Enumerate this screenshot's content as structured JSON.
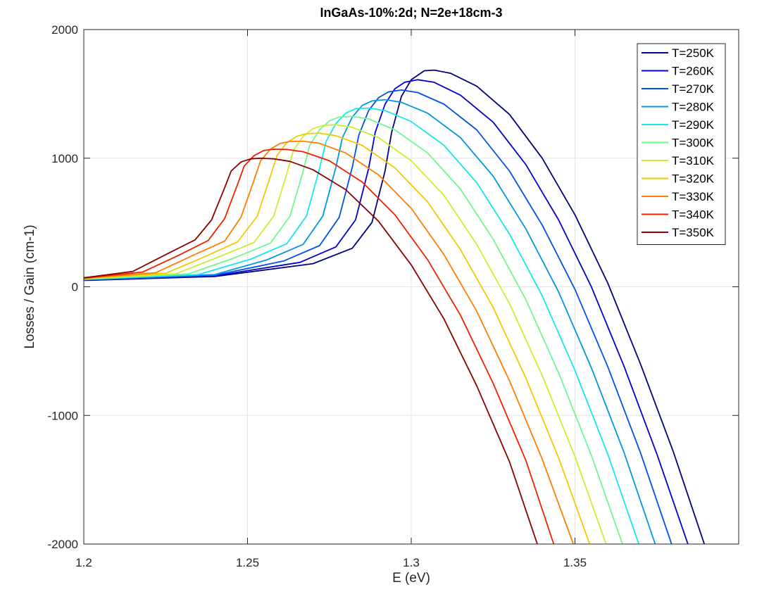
{
  "chart_data": {
    "type": "line",
    "title": "InGaAs-10%:2d; N=2e+18cm-3",
    "xlabel": "E (eV)",
    "ylabel": "Losses / Gain (cm-1)",
    "xlim": [
      1.2,
      1.4
    ],
    "ylim": [
      -2000,
      2000
    ],
    "xticks": [
      1.2,
      1.25,
      1.3,
      1.35
    ],
    "xtick_labels": [
      "1.2",
      "1.25",
      "1.3",
      "1.35"
    ],
    "yticks": [
      -2000,
      -1000,
      0,
      1000,
      2000
    ],
    "ytick_labels": [
      "-2000",
      "-1000",
      "0",
      "1000",
      "2000"
    ],
    "grid": true,
    "legend_position": "top-right",
    "series": [
      {
        "name": "T=250K",
        "color": "#00007f",
        "x": [
          1.2,
          1.24,
          1.27,
          1.282,
          1.288,
          1.292,
          1.294,
          1.297,
          1.3,
          1.304,
          1.307,
          1.312,
          1.32,
          1.33,
          1.34,
          1.35,
          1.36,
          1.37,
          1.38,
          1.3895
        ],
        "y": [
          50,
          80,
          180,
          300,
          500,
          900,
          1200,
          1480,
          1610,
          1680,
          1685,
          1660,
          1560,
          1340,
          1000,
          560,
          30,
          -600,
          -1280,
          -2000
        ]
      },
      {
        "name": "T=260K",
        "color": "#0000d0",
        "x": [
          1.2,
          1.24,
          1.266,
          1.277,
          1.283,
          1.287,
          1.289,
          1.292,
          1.295,
          1.298,
          1.302,
          1.307,
          1.315,
          1.325,
          1.335,
          1.345,
          1.355,
          1.365,
          1.375,
          1.3845
        ],
        "y": [
          52,
          85,
          190,
          310,
          520,
          920,
          1200,
          1420,
          1540,
          1590,
          1610,
          1590,
          1490,
          1280,
          950,
          520,
          0,
          -620,
          -1300,
          -2000
        ]
      },
      {
        "name": "T=270K",
        "color": "#0050e8",
        "x": [
          1.2,
          1.24,
          1.261,
          1.272,
          1.278,
          1.282,
          1.284,
          1.287,
          1.29,
          1.293,
          1.297,
          1.302,
          1.31,
          1.32,
          1.33,
          1.34,
          1.35,
          1.36,
          1.37,
          1.3795
        ],
        "y": [
          54,
          90,
          200,
          320,
          540,
          930,
          1180,
          1370,
          1470,
          1515,
          1530,
          1510,
          1420,
          1220,
          900,
          480,
          -20,
          -620,
          -1290,
          -2000
        ]
      },
      {
        "name": "T=280K",
        "color": "#0096e0",
        "x": [
          1.2,
          1.24,
          1.256,
          1.267,
          1.273,
          1.277,
          1.279,
          1.282,
          1.285,
          1.288,
          1.292,
          1.297,
          1.305,
          1.315,
          1.325,
          1.335,
          1.345,
          1.355,
          1.365,
          1.3745
        ],
        "y": [
          56,
          95,
          210,
          330,
          550,
          930,
          1160,
          1320,
          1410,
          1445,
          1455,
          1435,
          1350,
          1160,
          860,
          450,
          -40,
          -630,
          -1290,
          -2000
        ]
      },
      {
        "name": "T=290K",
        "color": "#14e6f0",
        "x": [
          1.2,
          1.235,
          1.251,
          1.262,
          1.268,
          1.272,
          1.274,
          1.277,
          1.28,
          1.283,
          1.287,
          1.292,
          1.3,
          1.31,
          1.32,
          1.33,
          1.34,
          1.35,
          1.36,
          1.3695
        ],
        "y": [
          58,
          95,
          215,
          335,
          550,
          920,
          1130,
          1270,
          1350,
          1385,
          1390,
          1370,
          1285,
          1100,
          810,
          410,
          -70,
          -650,
          -1300,
          -2000
        ]
      },
      {
        "name": "T=300K",
        "color": "#70f890",
        "x": [
          1.2,
          1.232,
          1.246,
          1.257,
          1.263,
          1.267,
          1.269,
          1.272,
          1.275,
          1.278,
          1.282,
          1.287,
          1.295,
          1.305,
          1.315,
          1.325,
          1.335,
          1.345,
          1.355,
          1.3645
        ],
        "y": [
          60,
          100,
          225,
          340,
          550,
          900,
          1100,
          1220,
          1290,
          1320,
          1325,
          1305,
          1220,
          1040,
          760,
          370,
          -100,
          -670,
          -1310,
          -2000
        ]
      },
      {
        "name": "T=310K",
        "color": "#c8f030",
        "x": [
          1.2,
          1.228,
          1.241,
          1.252,
          1.258,
          1.262,
          1.264,
          1.267,
          1.27,
          1.273,
          1.277,
          1.282,
          1.29,
          1.3,
          1.31,
          1.32,
          1.33,
          1.34,
          1.35,
          1.3595
        ],
        "y": [
          62,
          100,
          230,
          345,
          550,
          880,
          1060,
          1170,
          1230,
          1255,
          1260,
          1240,
          1160,
          980,
          710,
          330,
          -130,
          -690,
          -1320,
          -2000
        ]
      },
      {
        "name": "T=320K",
        "color": "#f5c800",
        "x": [
          1.2,
          1.225,
          1.237,
          1.247,
          1.253,
          1.257,
          1.259,
          1.262,
          1.265,
          1.268,
          1.272,
          1.277,
          1.285,
          1.295,
          1.305,
          1.315,
          1.325,
          1.335,
          1.345,
          1.3545
        ],
        "y": [
          64,
          105,
          235,
          350,
          550,
          860,
          1020,
          1120,
          1170,
          1190,
          1195,
          1175,
          1100,
          925,
          660,
          290,
          -160,
          -710,
          -1330,
          -2000
        ]
      },
      {
        "name": "T=330K",
        "color": "#ff7e00",
        "x": [
          1.2,
          1.222,
          1.233,
          1.243,
          1.248,
          1.252,
          1.254,
          1.257,
          1.26,
          1.263,
          1.267,
          1.272,
          1.28,
          1.29,
          1.3,
          1.31,
          1.32,
          1.33,
          1.34,
          1.3495
        ],
        "y": [
          66,
          110,
          240,
          355,
          540,
          830,
          980,
          1070,
          1115,
          1130,
          1132,
          1115,
          1040,
          870,
          610,
          250,
          -190,
          -730,
          -1340,
          -2000
        ]
      },
      {
        "name": "T=340K",
        "color": "#f02000",
        "x": [
          1.2,
          1.218,
          1.229,
          1.238,
          1.243,
          1.247,
          1.249,
          1.252,
          1.255,
          1.258,
          1.262,
          1.267,
          1.275,
          1.285,
          1.295,
          1.305,
          1.315,
          1.325,
          1.335,
          1.3435
        ],
        "y": [
          68,
          115,
          245,
          360,
          530,
          800,
          940,
          1020,
          1060,
          1070,
          1068,
          1050,
          980,
          815,
          560,
          210,
          -220,
          -750,
          -1350,
          -2000
        ]
      },
      {
        "name": "T=350K",
        "color": "#8b0000",
        "x": [
          1.2,
          1.215,
          1.225,
          1.234,
          1.239,
          1.243,
          1.245,
          1.248,
          1.251,
          1.254,
          1.258,
          1.263,
          1.27,
          1.28,
          1.29,
          1.3,
          1.31,
          1.32,
          1.33,
          1.3385
        ],
        "y": [
          70,
          120,
          250,
          365,
          520,
          770,
          900,
          970,
          995,
          1000,
          995,
          975,
          910,
          755,
          510,
          170,
          -250,
          -770,
          -1360,
          -2000
        ]
      }
    ]
  }
}
